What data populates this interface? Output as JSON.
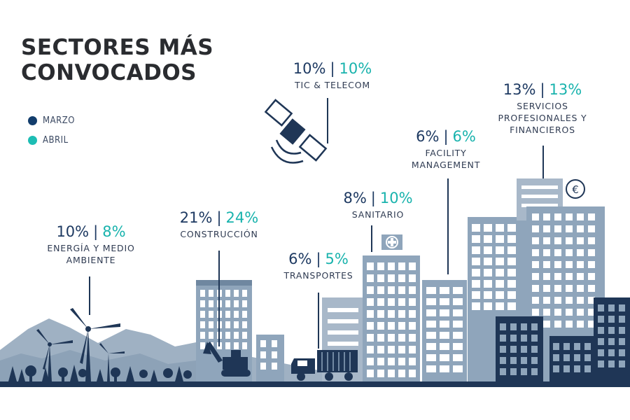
{
  "title_lines": [
    "SECTORES MÁS",
    "CONVOCADOS"
  ],
  "legend": [
    {
      "label": "MARZO",
      "color": "#123d6c"
    },
    {
      "label": "ABRIL",
      "color": "#1dbdb4"
    }
  ],
  "colors": {
    "marzo": "#1e3a62",
    "abril": "#19b3ad",
    "building_light": "#8fa5bb",
    "building_dark": "#1f3656",
    "mountains": "#9fb1c3"
  },
  "sectors": [
    {
      "label": "ENERGÍA Y MEDIO AMBIENTE",
      "label_lines": [
        "ENERGÍA Y MEDIO",
        "AMBIENTE"
      ],
      "marzo": "10%",
      "abril": "8%"
    },
    {
      "label": "CONSTRUCCIÓN",
      "label_lines": [
        "CONSTRUCCIÓN"
      ],
      "marzo": "21%",
      "abril": "24%"
    },
    {
      "label": "TIC & TELECOM",
      "label_lines": [
        "TIC & TELECOM"
      ],
      "marzo": "10%",
      "abril": "10%"
    },
    {
      "label": "TRANSPORTES",
      "label_lines": [
        "TRANSPORTES"
      ],
      "marzo": "6%",
      "abril": "5%"
    },
    {
      "label": "SANITARIO",
      "label_lines": [
        "SANITARIO"
      ],
      "marzo": "8%",
      "abril": "10%"
    },
    {
      "label": "FACILITY MANAGEMENT",
      "label_lines": [
        "FACILITY",
        "MANAGEMENT"
      ],
      "marzo": "6%",
      "abril": "6%"
    },
    {
      "label": "SERVICIOS PROFESIONALES Y FINANCIEROS",
      "label_lines": [
        "SERVICIOS",
        "PROFESIONALES Y",
        "FINANCIEROS"
      ],
      "marzo": "13%",
      "abril": "13%"
    }
  ],
  "chart_data": {
    "type": "table",
    "title": "SECTORES MÁS CONVOCADOS",
    "categories": [
      "ENERGÍA Y MEDIO AMBIENTE",
      "CONSTRUCCIÓN",
      "TIC & TELECOM",
      "TRANSPORTES",
      "SANITARIO",
      "FACILITY MANAGEMENT",
      "SERVICIOS PROFESIONALES Y FINANCIEROS"
    ],
    "series": [
      {
        "name": "MARZO",
        "values": [
          10,
          21,
          10,
          6,
          8,
          6,
          13
        ]
      },
      {
        "name": "ABRIL",
        "values": [
          8,
          24,
          10,
          5,
          10,
          6,
          13
        ]
      }
    ],
    "unit": "%",
    "legend_position": "left"
  },
  "icons": [
    "satellite-icon",
    "euro-icon",
    "hospital-cross-icon",
    "wind-turbine-icon",
    "excavator-icon",
    "truck-icon"
  ]
}
